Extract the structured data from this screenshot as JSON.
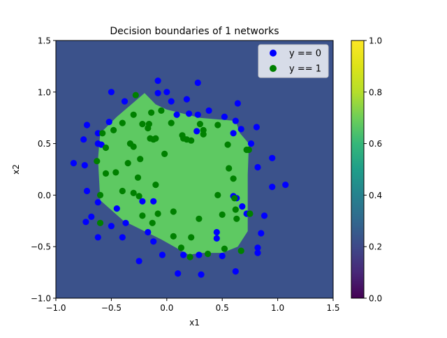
{
  "chart_data": {
    "type": "scatter",
    "title": "Decision boundaries of 1 networks",
    "xlabel": "x1",
    "ylabel": "x2",
    "xlim": [
      -1.0,
      1.5
    ],
    "ylim": [
      -1.0,
      1.5
    ],
    "x_ticks": [
      -1.0,
      -0.5,
      0.0,
      0.5,
      1.0,
      1.5
    ],
    "y_ticks": [
      -1.0,
      -0.5,
      0.0,
      0.5,
      1.0,
      1.5
    ],
    "x_tick_labels": [
      "−1.0",
      "−0.5",
      "0.0",
      "0.5",
      "1.0",
      "1.5"
    ],
    "y_tick_labels": [
      "−1.0",
      "−0.5",
      "0.0",
      "0.5",
      "1.0",
      "1.5"
    ],
    "grid": false,
    "legend_position": "top-right",
    "background_value": 0.2,
    "region": {
      "value": 0.77,
      "color": "#5ec962",
      "polygon": [
        [
          -0.2,
          0.99
        ],
        [
          -0.1,
          0.88
        ],
        [
          0.0,
          0.83
        ],
        [
          0.3,
          0.75
        ],
        [
          0.62,
          0.72
        ],
        [
          0.66,
          0.6
        ],
        [
          0.74,
          0.5
        ],
        [
          0.73,
          0.2
        ],
        [
          0.73,
          -0.35
        ],
        [
          0.64,
          -0.5
        ],
        [
          0.5,
          -0.56
        ],
        [
          0.3,
          -0.56
        ],
        [
          0.2,
          -0.58
        ],
        [
          -0.05,
          -0.43
        ],
        [
          -0.39,
          -0.25
        ],
        [
          -0.6,
          -0.05
        ],
        [
          -0.62,
          0.35
        ],
        [
          -0.6,
          0.6
        ],
        [
          -0.45,
          0.76
        ]
      ]
    },
    "background_color": "#3b528b",
    "colorbar": {
      "range": [
        0.0,
        1.0
      ],
      "ticks": [
        0.0,
        0.2,
        0.4,
        0.6,
        0.8,
        1.0
      ],
      "tick_labels": [
        "0.0",
        "0.2",
        "0.4",
        "0.6",
        "0.8",
        "1.0"
      ],
      "colormap": "viridis"
    },
    "series": [
      {
        "name": "y == 0",
        "color": "#0000ff",
        "x": [
          -0.08,
          0.0,
          -0.5,
          -0.08,
          0.28,
          0.18,
          0.04,
          -0.38,
          0.64,
          0.38,
          0.52,
          0.62,
          0.67,
          0.6,
          0.81,
          0.76,
          0.82,
          0.27,
          0.2,
          -0.72,
          -0.75,
          -0.52,
          -0.62,
          -0.62,
          -0.59,
          -0.84,
          -0.74,
          -0.72,
          -0.62,
          -0.68,
          -0.73,
          -0.45,
          -0.5,
          -0.62,
          -0.37,
          -0.4,
          -0.17,
          -0.12,
          -0.04,
          0.15,
          0.1,
          0.29,
          0.31,
          0.45,
          0.5,
          0.62,
          0.72,
          0.68,
          0.82,
          0.85,
          0.82,
          0.88,
          0.95,
          1.07,
          0.95,
          0.63,
          -0.25,
          -0.12,
          -0.22,
          0.09,
          0.28,
          0.45,
          0.6
        ],
        "y": [
          1.11,
          1.0,
          1.0,
          0.99,
          1.09,
          0.93,
          0.91,
          0.91,
          0.89,
          0.82,
          0.76,
          0.72,
          0.64,
          0.6,
          0.66,
          0.5,
          0.27,
          0.62,
          0.79,
          0.68,
          0.54,
          0.71,
          0.6,
          0.5,
          0.49,
          0.31,
          0.29,
          0.04,
          -0.07,
          -0.21,
          -0.26,
          -0.13,
          -0.3,
          -0.41,
          -0.27,
          -0.41,
          -0.36,
          -0.45,
          -0.58,
          -0.58,
          -0.76,
          -0.58,
          -0.77,
          -0.42,
          -0.59,
          -0.74,
          -0.18,
          -0.11,
          -0.51,
          -0.37,
          -0.56,
          -0.2,
          0.08,
          0.1,
          0.36,
          -0.03,
          -0.64,
          -0.06,
          -0.06,
          0.78,
          0.78,
          -0.36,
          -0.01
        ]
      },
      {
        "name": "y == 1",
        "color": "#008000",
        "x": [
          -0.28,
          -0.3,
          -0.22,
          -0.14,
          -0.16,
          -0.05,
          0.04,
          0.14,
          0.22,
          0.3,
          0.33,
          0.46,
          0.55,
          0.56,
          0.6,
          0.72,
          -0.6,
          -0.58,
          -0.48,
          -0.55,
          -0.63,
          -0.6,
          -0.55,
          -0.46,
          -0.4,
          -0.4,
          -0.33,
          -0.3,
          -0.3,
          -0.24,
          -0.26,
          -0.1,
          -0.15,
          -0.12,
          -0.17,
          -0.1,
          -0.08,
          -0.02,
          -0.13,
          0.06,
          0.18,
          0.15,
          0.22,
          0.29,
          0.46,
          0.5,
          0.62,
          0.63,
          0.61,
          0.75,
          0.74,
          0.67,
          0.52,
          0.37,
          0.21,
          0.13,
          0.06,
          -0.22,
          -0.25,
          -0.35,
          0.33
        ],
        "y": [
          0.97,
          0.78,
          0.69,
          0.8,
          0.69,
          0.82,
          0.7,
          0.58,
          0.53,
          0.69,
          0.59,
          0.68,
          0.49,
          0.26,
          0.16,
          0.44,
          0.0,
          0.6,
          0.63,
          0.46,
          0.33,
          -0.27,
          0.21,
          0.22,
          0.04,
          0.7,
          0.5,
          0.47,
          0.02,
          0.35,
          0.17,
          0.55,
          0.55,
          0.54,
          0.65,
          0.1,
          -0.18,
          0.4,
          -0.27,
          -0.16,
          0.54,
          0.55,
          -0.41,
          -0.23,
          0.0,
          -0.19,
          -0.14,
          -0.23,
          -0.03,
          -0.18,
          0.44,
          -0.54,
          -0.52,
          -0.57,
          -0.6,
          -0.51,
          -0.4,
          -0.2,
          -0.01,
          0.31,
          0.63
        ]
      }
    ]
  }
}
